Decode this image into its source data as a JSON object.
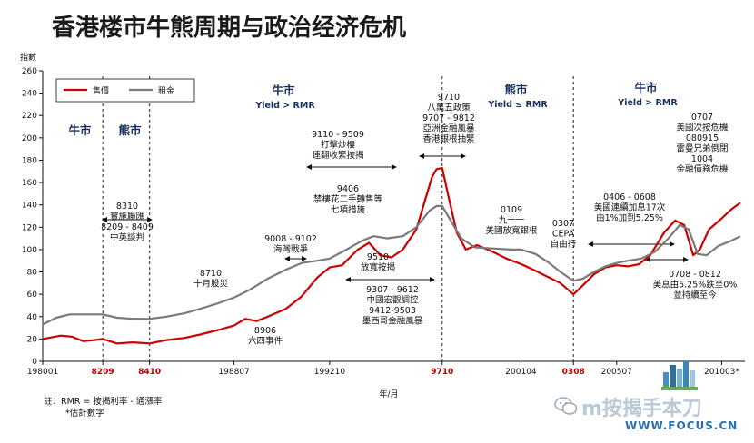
{
  "title": "香港楼市牛熊周期与政治经济危机",
  "chart_data": {
    "type": "line",
    "ylabel": "指數",
    "xlabel": "年/月",
    "ylim": [
      0,
      260
    ],
    "yticks": [
      0,
      20,
      40,
      60,
      80,
      100,
      120,
      140,
      160,
      180,
      200,
      220,
      240,
      260
    ],
    "xlim": [
      1980.0,
      2011.2
    ],
    "xticks": [
      {
        "label": "198001",
        "x": 1980.0,
        "highlight": false
      },
      {
        "label": "8209",
        "x": 1982.67,
        "highlight": true
      },
      {
        "label": "8410",
        "x": 1984.75,
        "highlight": true
      },
      {
        "label": "198807",
        "x": 1988.5,
        "highlight": false
      },
      {
        "label": "199210",
        "x": 1992.75,
        "highlight": false
      },
      {
        "label": "9710",
        "x": 1997.75,
        "highlight": true
      },
      {
        "label": "200104",
        "x": 2001.25,
        "highlight": false
      },
      {
        "label": "0308",
        "x": 2003.58,
        "highlight": true
      },
      {
        "label": "200507",
        "x": 2005.5,
        "highlight": false
      },
      {
        "label": "201003*",
        "x": 2010.17,
        "highlight": false
      }
    ],
    "series": [
      {
        "name": "售價",
        "color": "#cc0000",
        "points": [
          [
            1980.0,
            20
          ],
          [
            1980.8,
            23
          ],
          [
            1981.3,
            22
          ],
          [
            1981.8,
            18
          ],
          [
            1982.3,
            19
          ],
          [
            1982.67,
            20
          ],
          [
            1983.3,
            16
          ],
          [
            1984.0,
            17
          ],
          [
            1984.75,
            16
          ],
          [
            1985.5,
            19
          ],
          [
            1986.3,
            21
          ],
          [
            1987.0,
            24
          ],
          [
            1987.8,
            28
          ],
          [
            1988.5,
            32
          ],
          [
            1989.0,
            38
          ],
          [
            1989.5,
            36
          ],
          [
            1990.0,
            40
          ],
          [
            1990.8,
            47
          ],
          [
            1991.5,
            58
          ],
          [
            1992.2,
            75
          ],
          [
            1992.75,
            84
          ],
          [
            1993.3,
            86
          ],
          [
            1994.0,
            100
          ],
          [
            1994.5,
            106
          ],
          [
            1995.0,
            95
          ],
          [
            1995.5,
            93
          ],
          [
            1996.0,
            100
          ],
          [
            1996.6,
            118
          ],
          [
            1997.0,
            145
          ],
          [
            1997.3,
            165
          ],
          [
            1997.5,
            172
          ],
          [
            1997.75,
            173
          ],
          [
            1998.0,
            150
          ],
          [
            1998.4,
            115
          ],
          [
            1998.8,
            100
          ],
          [
            1999.3,
            104
          ],
          [
            2000.0,
            98
          ],
          [
            2000.6,
            92
          ],
          [
            2001.25,
            87
          ],
          [
            2001.8,
            82
          ],
          [
            2002.4,
            76
          ],
          [
            2003.0,
            70
          ],
          [
            2003.58,
            60
          ],
          [
            2004.0,
            68
          ],
          [
            2004.5,
            78
          ],
          [
            2005.0,
            84
          ],
          [
            2005.5,
            86
          ],
          [
            2006.0,
            85
          ],
          [
            2006.5,
            87
          ],
          [
            2007.0,
            95
          ],
          [
            2007.6,
            115
          ],
          [
            2008.1,
            126
          ],
          [
            2008.5,
            122
          ],
          [
            2008.9,
            95
          ],
          [
            2009.2,
            100
          ],
          [
            2009.6,
            118
          ],
          [
            2010.17,
            128
          ],
          [
            2010.6,
            136
          ],
          [
            2011.0,
            142
          ]
        ]
      },
      {
        "name": "租金",
        "color": "#7a7a7a",
        "points": [
          [
            1980.0,
            33
          ],
          [
            1980.6,
            39
          ],
          [
            1981.2,
            42
          ],
          [
            1981.8,
            42
          ],
          [
            1982.67,
            42
          ],
          [
            1983.3,
            39
          ],
          [
            1984.0,
            38
          ],
          [
            1984.75,
            38
          ],
          [
            1985.5,
            40
          ],
          [
            1986.3,
            43
          ],
          [
            1987.0,
            47
          ],
          [
            1987.8,
            52
          ],
          [
            1988.5,
            57
          ],
          [
            1989.2,
            64
          ],
          [
            1990.0,
            74
          ],
          [
            1990.8,
            82
          ],
          [
            1991.5,
            88
          ],
          [
            1992.2,
            90
          ],
          [
            1992.75,
            92
          ],
          [
            1993.5,
            100
          ],
          [
            1994.2,
            108
          ],
          [
            1994.7,
            112
          ],
          [
            1995.3,
            110
          ],
          [
            1996.0,
            112
          ],
          [
            1996.6,
            120
          ],
          [
            1997.2,
            135
          ],
          [
            1997.5,
            139
          ],
          [
            1997.75,
            139
          ],
          [
            1998.1,
            127
          ],
          [
            1998.6,
            110
          ],
          [
            1999.2,
            102
          ],
          [
            2000.0,
            101
          ],
          [
            2000.8,
            100
          ],
          [
            2001.25,
            100
          ],
          [
            2001.9,
            96
          ],
          [
            2002.5,
            88
          ],
          [
            2003.0,
            80
          ],
          [
            2003.58,
            72
          ],
          [
            2004.0,
            74
          ],
          [
            2004.5,
            80
          ],
          [
            2005.0,
            85
          ],
          [
            2005.5,
            88
          ],
          [
            2006.0,
            90
          ],
          [
            2006.6,
            92
          ],
          [
            2007.2,
            98
          ],
          [
            2007.8,
            110
          ],
          [
            2008.3,
            122
          ],
          [
            2008.7,
            118
          ],
          [
            2009.1,
            96
          ],
          [
            2009.5,
            95
          ],
          [
            2010.0,
            103
          ],
          [
            2010.6,
            108
          ],
          [
            2011.0,
            112
          ]
        ]
      }
    ],
    "phase_lines": [
      1982.67,
      1984.75,
      1997.75,
      2003.58
    ],
    "legend": {
      "position": "top-left"
    },
    "phases": [
      {
        "id": "p1",
        "label": "牛市",
        "sub": ""
      },
      {
        "id": "p2",
        "label": "熊市",
        "sub": ""
      },
      {
        "id": "p3",
        "label": "牛市",
        "sub": "Yield > RMR"
      },
      {
        "id": "p4",
        "label": "熊市",
        "sub": "Yield ≤ RMR"
      },
      {
        "id": "p5",
        "label": "牛市",
        "sub": "Yield > RMR"
      }
    ],
    "annotations": [
      {
        "id": "a8310",
        "lines": [
          "8310",
          "實施聯匯",
          "8209 - 8409",
          "中英談判"
        ]
      },
      {
        "id": "a8710",
        "lines": [
          "8710",
          "十月股災"
        ]
      },
      {
        "id": "a8906",
        "lines": [
          "8906",
          "六四事件"
        ]
      },
      {
        "id": "a9008",
        "lines": [
          "9008 - 9102",
          "海灣戰爭"
        ]
      },
      {
        "id": "a9110",
        "lines": [
          "9110 - 9509",
          "打擊炒樓",
          "連翻收緊按揭"
        ]
      },
      {
        "id": "a9406",
        "lines": [
          "9406",
          "禁樓花二手轉售等",
          "七項措施"
        ]
      },
      {
        "id": "a9510",
        "lines": [
          "9510",
          "放寬按揭"
        ]
      },
      {
        "id": "a9307",
        "lines": [
          "9307 - 9612",
          "中國宏觀調控",
          "9412-9503",
          "墨西哥金融風暴"
        ]
      },
      {
        "id": "a9710",
        "lines": [
          "9710",
          "八萬五政策",
          "9707 - 9812",
          "亞洲金融風暴",
          "香港銀根抽緊"
        ]
      },
      {
        "id": "a0109",
        "lines": [
          "0109",
          "九一一",
          "美國放寬銀根"
        ]
      },
      {
        "id": "a0307",
        "lines": [
          "0307",
          "CEPA",
          "自由行"
        ]
      },
      {
        "id": "a0406",
        "lines": [
          "0406 - 0608",
          "美國連續加息17次",
          "由1%加到5.25%"
        ]
      },
      {
        "id": "a0707",
        "lines": [
          "0707",
          "美國次按危機",
          "080915",
          "雷曼兄弟倒閉",
          "1004",
          "金融債務危機"
        ]
      },
      {
        "id": "a0708",
        "lines": [
          "0708 - 0812",
          "美息由5.25%跌至0%",
          "並持續至今"
        ]
      }
    ]
  },
  "footnote": {
    "line1": "註：RMR = 按揭利率 - 通漲率",
    "line2": "*估計數字"
  },
  "watermark": {
    "text": "m按揭手本刀",
    "url": "WWW.FOCUS.CN"
  }
}
